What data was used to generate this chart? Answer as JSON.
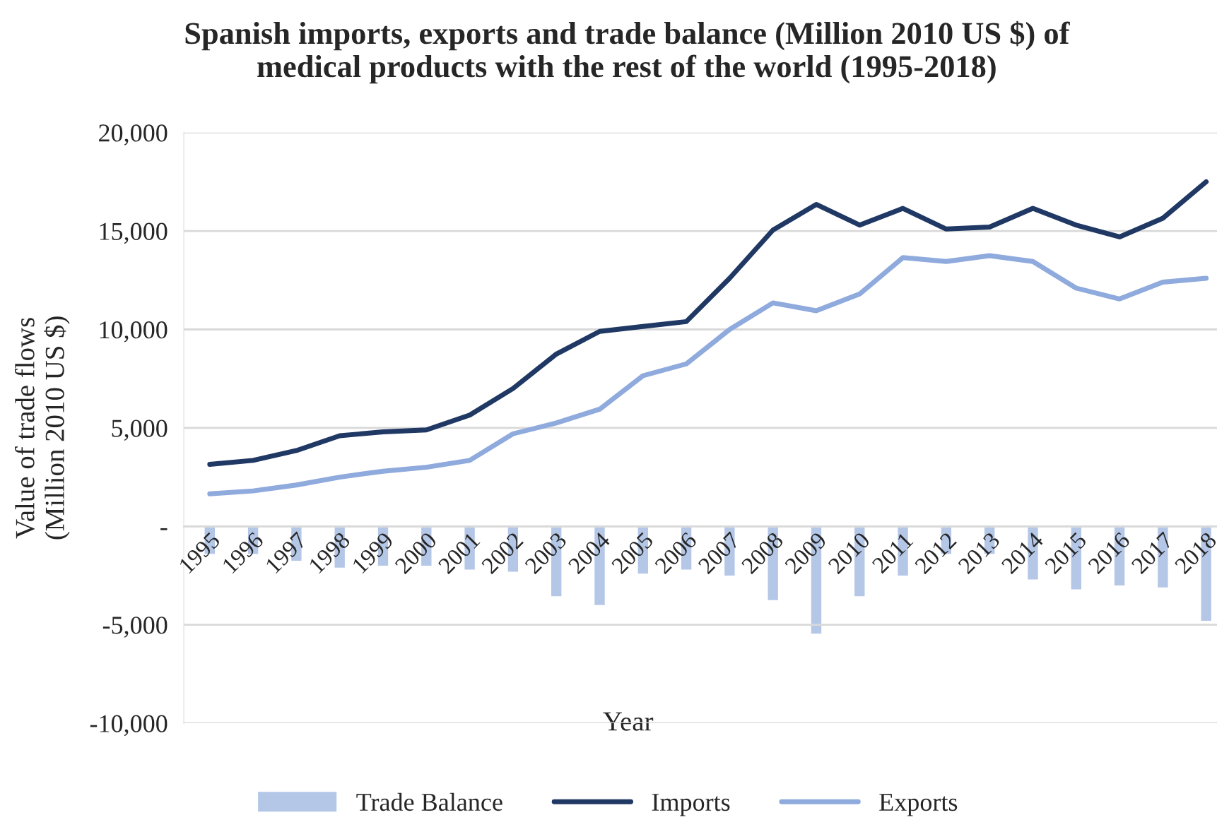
{
  "chart_data": {
    "type": "line",
    "title": "Spanish imports, exports and trade balance (Million 2010 US $) of\nmedical products with the rest of the world (1995-2018)",
    "xlabel": "Year",
    "ylabel": "Value of trade flows\n(Million 2010 US $)",
    "categories": [
      "1995",
      "1996",
      "1997",
      "1998",
      "1999",
      "2000",
      "2001",
      "2002",
      "2003",
      "2004",
      "2005",
      "2006",
      "2007",
      "2008",
      "2009",
      "2010",
      "2011",
      "2012",
      "2013",
      "2014",
      "2015",
      "2016",
      "2017",
      "2018"
    ],
    "series": [
      {
        "name": "Trade Balance",
        "type": "bar",
        "color": "#b4c7e7",
        "values": [
          -1450,
          -1450,
          -1800,
          -2150,
          -2050,
          -2050,
          -2250,
          -2350,
          -3600,
          -4050,
          -2450,
          -2250,
          -2550,
          -3800,
          -5500,
          -3600,
          -2550,
          -1450,
          -1450,
          -2750,
          -3250,
          -3050,
          -3150,
          -4850
        ]
      },
      {
        "name": "Imports",
        "color": "#203864",
        "values": [
          3150,
          3350,
          3850,
          4600,
          4800,
          4900,
          5650,
          7000,
          8750,
          9900,
          10150,
          10400,
          12600,
          15050,
          16350,
          15300,
          16150,
          15100,
          15200,
          16150,
          15300,
          14700,
          15650,
          17500
        ]
      },
      {
        "name": "Exports",
        "color": "#8faadc",
        "values": [
          1650,
          1800,
          2100,
          2500,
          2800,
          3000,
          3350,
          4700,
          5250,
          5950,
          7650,
          8250,
          10000,
          11350,
          10950,
          11800,
          13650,
          13450,
          13750,
          13450,
          12100,
          11550,
          12400,
          12600
        ]
      }
    ],
    "ylim": [
      -10000,
      20000
    ],
    "yticks": [
      {
        "value": -10000,
        "label": "-10,000"
      },
      {
        "value": -5000,
        "label": "-5,000"
      },
      {
        "value": 0,
        "label": "-"
      },
      {
        "value": 5000,
        "label": "5,000"
      },
      {
        "value": 10000,
        "label": "10,000"
      },
      {
        "value": 15000,
        "label": "15,000"
      },
      {
        "value": 20000,
        "label": "20,000"
      }
    ],
    "grid": "y",
    "legend": "bottom",
    "line_style": "solid",
    "marker": "none"
  }
}
